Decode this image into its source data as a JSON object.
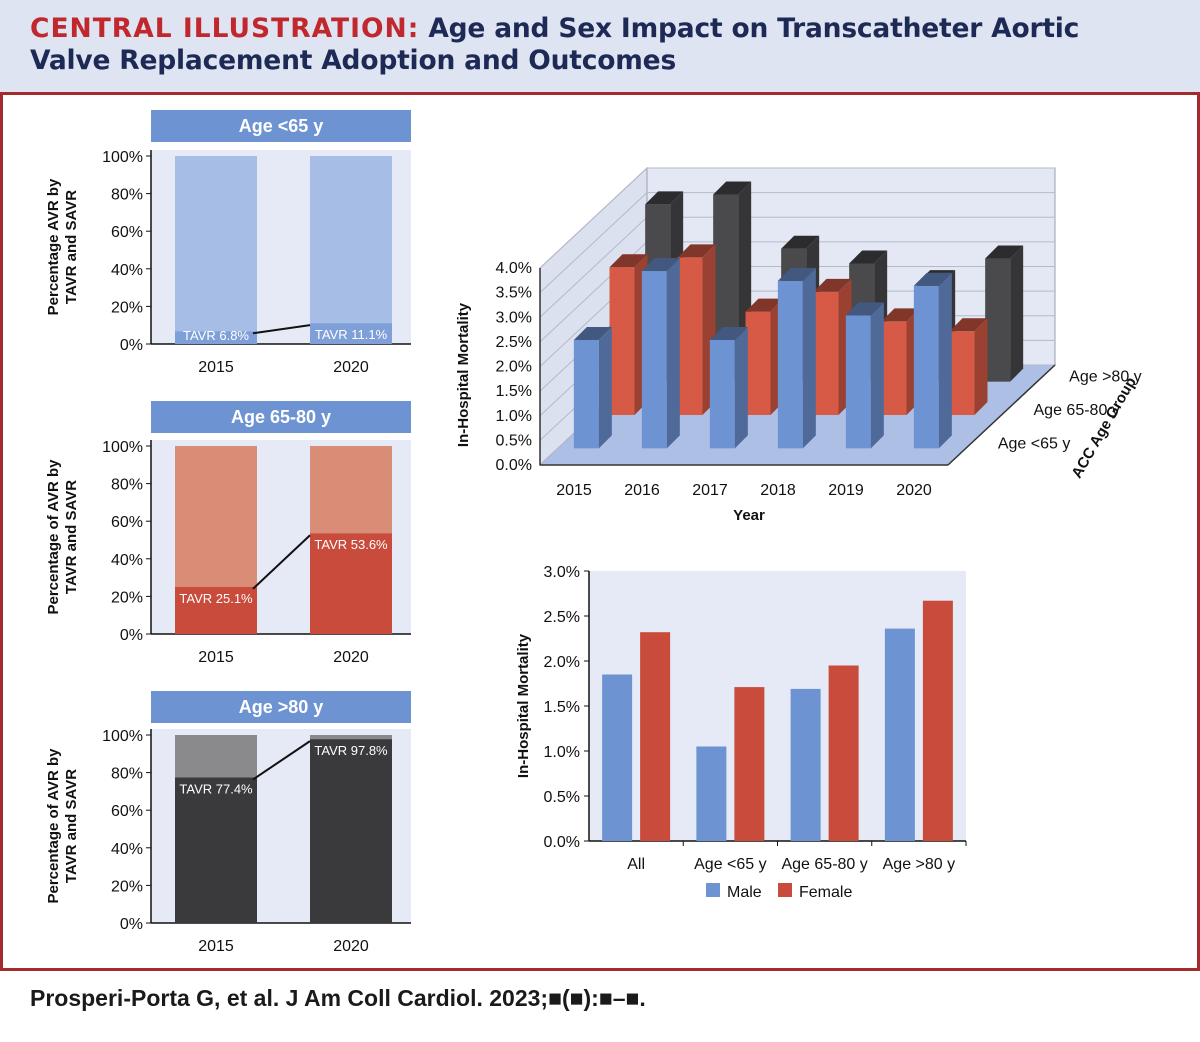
{
  "header": {
    "tag": "CENTRAL ILLUSTRATION:",
    "title_part1": "Age and Sex Impact on Transcatheter Aortic",
    "title_part2": "Valve Replacement Adoption and Outcomes"
  },
  "citation": "Prosperi-Porta G, et al. J Am Coll Cardiol. 2023;■(■):■–■.",
  "colors": {
    "header_bg": "#dfe4f2",
    "frame": "#a52a2e",
    "panel_bg": "#e6eaf6",
    "title_bar": "#6e93d3",
    "blue": "#6e93d3",
    "red": "#c94b3b",
    "dark": "#3a3a3c"
  },
  "chart_data": [
    {
      "id": "age-lt65",
      "type": "bar",
      "title": "Age <65 y",
      "ylabel_lines": [
        "Percentage AVR by",
        "TAVR and SAVR"
      ],
      "categories": [
        "2015",
        "2020"
      ],
      "series": [
        {
          "name": "TAVR",
          "values": [
            6.8,
            11.1
          ]
        },
        {
          "name": "SAVR",
          "values": [
            93.2,
            88.9
          ]
        }
      ],
      "data_labels": [
        "TAVR 6.8%",
        "TAVR 11.1%"
      ],
      "yticks": [
        "0%",
        "20%",
        "40%",
        "60%",
        "80%",
        "100%"
      ],
      "ylim": [
        0,
        100
      ],
      "tavr_color": "#7e9fd8",
      "savr_color": "#a6bde6"
    },
    {
      "id": "age-65-80",
      "type": "bar",
      "title": "Age 65-80 y",
      "ylabel_lines": [
        "Percentage of AVR by",
        "TAVR and SAVR"
      ],
      "categories": [
        "2015",
        "2020"
      ],
      "series": [
        {
          "name": "TAVR",
          "values": [
            25.1,
            53.6
          ]
        },
        {
          "name": "SAVR",
          "values": [
            74.9,
            46.4
          ]
        }
      ],
      "data_labels": [
        "TAVR 25.1%",
        "TAVR 53.6%"
      ],
      "yticks": [
        "0%",
        "20%",
        "40%",
        "60%",
        "80%",
        "100%"
      ],
      "ylim": [
        0,
        100
      ],
      "tavr_color": "#c94b3b",
      "savr_color": "#d98c76"
    },
    {
      "id": "age-gt80",
      "type": "bar",
      "title": "Age >80 y",
      "ylabel_lines": [
        "Percentage of AVR by",
        "TAVR and SAVR"
      ],
      "categories": [
        "2015",
        "2020"
      ],
      "series": [
        {
          "name": "TAVR",
          "values": [
            77.4,
            97.8
          ]
        },
        {
          "name": "SAVR",
          "values": [
            22.6,
            2.2
          ]
        }
      ],
      "data_labels": [
        "TAVR 77.4%",
        "TAVR 97.8%"
      ],
      "yticks": [
        "0%",
        "20%",
        "40%",
        "60%",
        "80%",
        "100%"
      ],
      "ylim": [
        0,
        100
      ],
      "tavr_color": "#3a3a3c",
      "savr_color": "#8a8a8c"
    },
    {
      "id": "mortality-3d",
      "type": "bar",
      "ylabel": "In-Hospital Mortality",
      "xlabel": "Year",
      "zlabel": "ACC Age Group",
      "categories": [
        "2015",
        "2016",
        "2017",
        "2018",
        "2019",
        "2020"
      ],
      "groups": [
        "Age <65 y",
        "Age 65-80 y",
        "Age >80 y"
      ],
      "yticks": [
        "0.0%",
        "0.5%",
        "1.0%",
        "1.5%",
        "2.0%",
        "2.5%",
        "3.0%",
        "3.5%",
        "4.0%"
      ],
      "ylim": [
        0,
        4
      ],
      "series": [
        {
          "name": "Age <65 y",
          "color": "#6e93d3",
          "values": [
            2.2,
            3.6,
            2.2,
            3.4,
            2.7,
            3.3
          ]
        },
        {
          "name": "Age 65-80 y",
          "color": "#d65a45",
          "values": [
            3.0,
            3.2,
            2.1,
            2.5,
            1.9,
            1.7
          ]
        },
        {
          "name": "Age >80 y",
          "color": "#4a4a4c",
          "values": [
            3.6,
            3.8,
            2.7,
            2.4,
            2.0,
            2.5
          ]
        }
      ]
    },
    {
      "id": "mortality-sex",
      "type": "bar",
      "ylabel": "In-Hospital Mortality",
      "categories": [
        "All",
        "Age <65 y",
        "Age 65-80 y",
        "Age >80 y"
      ],
      "yticks": [
        "0.0%",
        "0.5%",
        "1.0%",
        "1.5%",
        "2.0%",
        "2.5%",
        "3.0%"
      ],
      "ylim": [
        0,
        3
      ],
      "legend": "bottom",
      "series": [
        {
          "name": "Male",
          "color": "#6e93d3",
          "values": [
            1.85,
            1.05,
            1.69,
            2.36
          ]
        },
        {
          "name": "Female",
          "color": "#c94b3b",
          "values": [
            2.32,
            1.71,
            1.95,
            2.67
          ]
        }
      ]
    }
  ]
}
